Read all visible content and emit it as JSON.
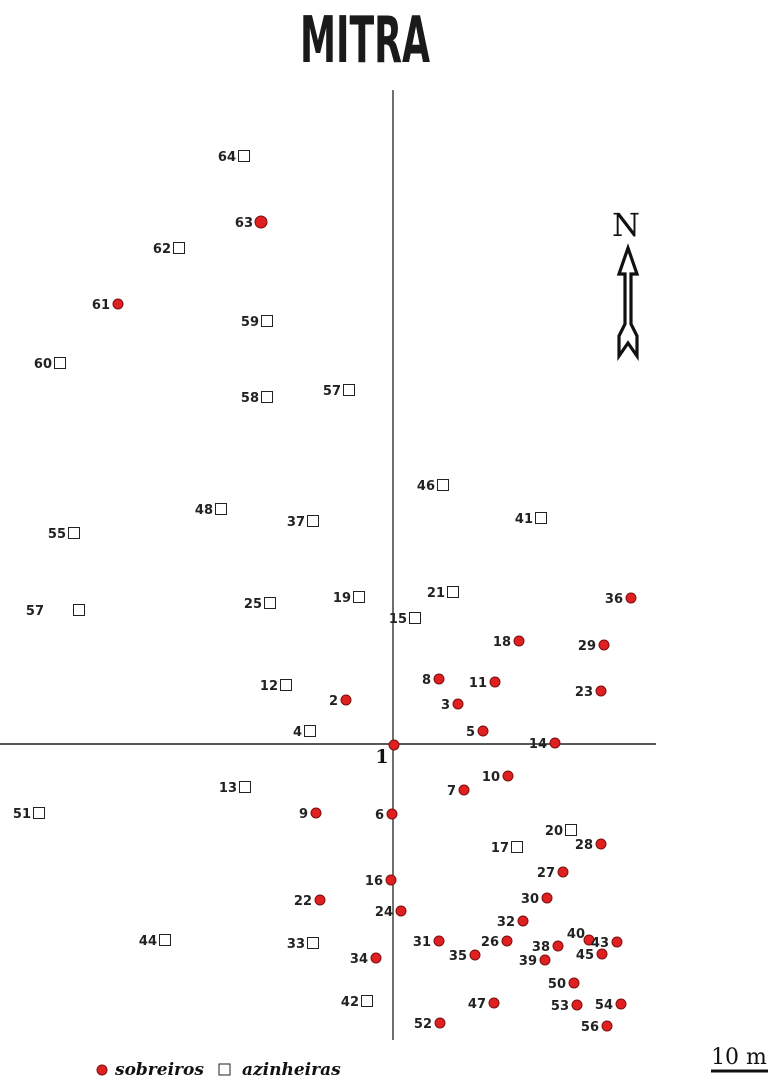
{
  "title": "MITRA",
  "north_label": "N",
  "origin_label": "1",
  "scale_label": "10 m",
  "legend": {
    "sobreiros_label": "sobreiros",
    "azinheiras_label": "azinheiras"
  },
  "colors": {
    "sobreiro_fill": "#e02020",
    "sobreiro_stroke": "#7a1010",
    "azinheira_stroke": "#222222",
    "axis": "#222222"
  },
  "trees": [
    {
      "id": "1",
      "type": "sobreiro"
    },
    {
      "id": "2",
      "type": "sobreiro"
    },
    {
      "id": "3",
      "type": "sobreiro"
    },
    {
      "id": "4",
      "type": "azinheira"
    },
    {
      "id": "5",
      "type": "sobreiro"
    },
    {
      "id": "6",
      "type": "sobreiro"
    },
    {
      "id": "7",
      "type": "sobreiro"
    },
    {
      "id": "8",
      "type": "sobreiro"
    },
    {
      "id": "9",
      "type": "sobreiro"
    },
    {
      "id": "10",
      "type": "sobreiro"
    },
    {
      "id": "11",
      "type": "sobreiro"
    },
    {
      "id": "12",
      "type": "azinheira"
    },
    {
      "id": "13",
      "type": "azinheira"
    },
    {
      "id": "14",
      "type": "sobreiro"
    },
    {
      "id": "15",
      "type": "azinheira"
    },
    {
      "id": "16",
      "type": "sobreiro"
    },
    {
      "id": "17",
      "type": "azinheira"
    },
    {
      "id": "18",
      "type": "sobreiro"
    },
    {
      "id": "19",
      "type": "azinheira"
    },
    {
      "id": "20",
      "type": "azinheira"
    },
    {
      "id": "21",
      "type": "azinheira"
    },
    {
      "id": "22",
      "type": "sobreiro"
    },
    {
      "id": "23",
      "type": "sobreiro"
    },
    {
      "id": "24",
      "type": "sobreiro"
    },
    {
      "id": "25",
      "type": "azinheira"
    },
    {
      "id": "26",
      "type": "sobreiro"
    },
    {
      "id": "27",
      "type": "sobreiro"
    },
    {
      "id": "28",
      "type": "sobreiro"
    },
    {
      "id": "29",
      "type": "sobreiro"
    },
    {
      "id": "30",
      "type": "sobreiro"
    },
    {
      "id": "31",
      "type": "sobreiro"
    },
    {
      "id": "32",
      "type": "sobreiro"
    },
    {
      "id": "33",
      "type": "azinheira"
    },
    {
      "id": "34",
      "type": "sobreiro"
    },
    {
      "id": "35",
      "type": "sobreiro"
    },
    {
      "id": "36",
      "type": "sobreiro"
    },
    {
      "id": "37",
      "type": "azinheira"
    },
    {
      "id": "38",
      "type": "sobreiro"
    },
    {
      "id": "39",
      "type": "sobreiro"
    },
    {
      "id": "40",
      "type": "sobreiro"
    },
    {
      "id": "41",
      "type": "azinheira"
    },
    {
      "id": "42",
      "type": "azinheira"
    },
    {
      "id": "43",
      "type": "sobreiro"
    },
    {
      "id": "44",
      "type": "azinheira"
    },
    {
      "id": "45",
      "type": "sobreiro"
    },
    {
      "id": "46",
      "type": "azinheira"
    },
    {
      "id": "47",
      "type": "sobreiro"
    },
    {
      "id": "48",
      "type": "azinheira"
    },
    {
      "id": "50",
      "type": "sobreiro"
    },
    {
      "id": "51",
      "type": "azinheira"
    },
    {
      "id": "52",
      "type": "sobreiro"
    },
    {
      "id": "53",
      "type": "sobreiro"
    },
    {
      "id": "54",
      "type": "sobreiro"
    },
    {
      "id": "55",
      "type": "azinheira"
    },
    {
      "id": "56",
      "type": "sobreiro"
    },
    {
      "id": "57",
      "type": "azinheira"
    },
    {
      "id": "57",
      "type": "azinheira"
    },
    {
      "id": "58",
      "type": "azinheira"
    },
    {
      "id": "59",
      "type": "azinheira"
    },
    {
      "id": "60",
      "type": "azinheira"
    },
    {
      "id": "61",
      "type": "sobreiro"
    },
    {
      "id": "62",
      "type": "azinheira"
    },
    {
      "id": "63",
      "type": "sobreiro"
    },
    {
      "id": "64",
      "type": "azinheira"
    }
  ]
}
